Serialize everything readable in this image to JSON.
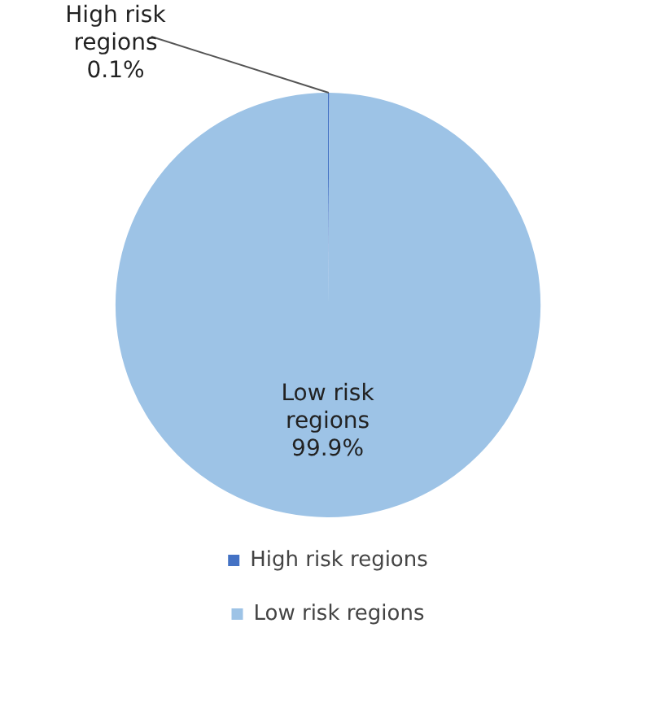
{
  "chart_data": {
    "type": "pie",
    "categories": [
      "High risk regions",
      "Low risk regions"
    ],
    "values": [
      0.1,
      99.9
    ],
    "colors": [
      "#4472c4",
      "#9dc3e6"
    ],
    "value_labels": [
      "0.1%",
      "99.9%"
    ],
    "legend": "bottom"
  }
}
